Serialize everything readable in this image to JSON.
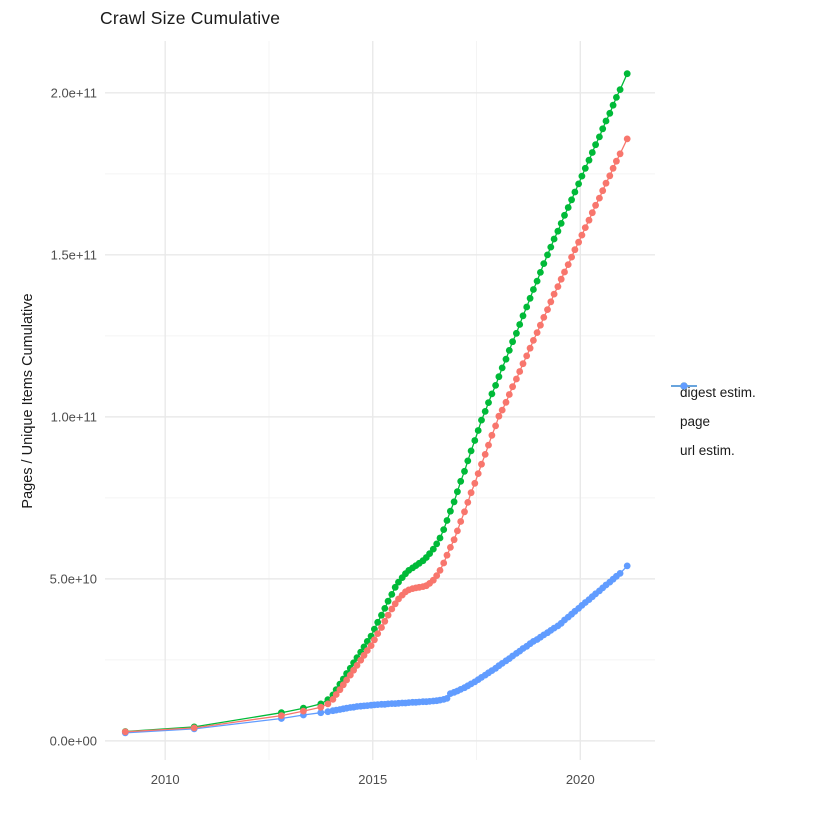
{
  "title": "Crawl Size Cumulative",
  "chart_data": {
    "type": "scatter",
    "title": "Crawl Size Cumulative",
    "xlabel": "",
    "ylabel": "Pages / Unique Items Cumulative",
    "value_unit": "pages / unique items, billions (1e9)",
    "grid": true,
    "background": "#ffffff",
    "grid_major_color": "#e9e9e9",
    "grid_minor_color": "#f4f4f4",
    "tick_text_color": "#4d4d4d",
    "x_axis": {
      "domain": [
        2008.55,
        2021.8
      ],
      "major_ticks": [
        2010,
        2015,
        2020
      ],
      "tick_labels": [
        "2010",
        "2015",
        "2020"
      ],
      "minor_ticks": [
        2012.5,
        2017.5
      ]
    },
    "y_axis": {
      "domain_billions": [
        -5.9,
        216
      ],
      "major_ticks_billions": [
        0,
        50,
        100,
        150,
        200
      ],
      "tick_labels": [
        "0.0e+00",
        "5.0e+10",
        "1.0e+11",
        "1.5e+11",
        "2.0e+11"
      ],
      "minor_ticks_billions": [
        25,
        75,
        125,
        175
      ]
    },
    "legend": {
      "position": "right",
      "title": ""
    },
    "series": [
      {
        "name": "digest estim.",
        "color": "#F8766D",
        "points": [
          [
            2009.04,
            2.8
          ],
          [
            2010.7,
            4.0
          ],
          [
            2012.8,
            7.8
          ],
          [
            2013.33,
            9.2
          ],
          [
            2013.75,
            10.4
          ],
          [
            2013.92,
            11.4
          ],
          [
            2014.04,
            12.8
          ],
          [
            2014.12,
            14.3
          ],
          [
            2014.21,
            15.8
          ],
          [
            2014.29,
            17.3
          ],
          [
            2014.37,
            18.8
          ],
          [
            2014.46,
            20.3
          ],
          [
            2014.54,
            21.8
          ],
          [
            2014.62,
            23.3
          ],
          [
            2014.71,
            24.9
          ],
          [
            2014.79,
            26.4
          ],
          [
            2014.87,
            27.9
          ],
          [
            2014.96,
            29.4
          ],
          [
            2015.04,
            31.2
          ],
          [
            2015.12,
            33.1
          ],
          [
            2015.21,
            35.0
          ],
          [
            2015.29,
            36.9
          ],
          [
            2015.37,
            38.8
          ],
          [
            2015.46,
            40.7
          ],
          [
            2015.54,
            42.3
          ],
          [
            2015.62,
            43.8
          ],
          [
            2015.71,
            45.0
          ],
          [
            2015.79,
            46.0
          ],
          [
            2015.87,
            46.6
          ],
          [
            2015.96,
            47.0
          ],
          [
            2016.04,
            47.2
          ],
          [
            2016.12,
            47.4
          ],
          [
            2016.21,
            47.6
          ],
          [
            2016.29,
            47.9
          ],
          [
            2016.37,
            48.6
          ],
          [
            2016.46,
            49.6
          ],
          [
            2016.54,
            51.0
          ],
          [
            2016.62,
            52.6
          ],
          [
            2016.71,
            54.9
          ],
          [
            2016.79,
            57.3
          ],
          [
            2016.87,
            59.7
          ],
          [
            2016.96,
            62.1
          ],
          [
            2017.04,
            64.8
          ],
          [
            2017.12,
            67.7
          ],
          [
            2017.21,
            70.7
          ],
          [
            2017.29,
            73.6
          ],
          [
            2017.37,
            76.6
          ],
          [
            2017.46,
            79.5
          ],
          [
            2017.54,
            82.5
          ],
          [
            2017.62,
            85.4
          ],
          [
            2017.71,
            88.4
          ],
          [
            2017.79,
            91.3
          ],
          [
            2017.87,
            94.3
          ],
          [
            2017.96,
            97.2
          ],
          [
            2018.04,
            100.2
          ],
          [
            2018.12,
            102.1
          ],
          [
            2018.21,
            104.5
          ],
          [
            2018.29,
            106.9
          ],
          [
            2018.37,
            109.3
          ],
          [
            2018.46,
            111.7
          ],
          [
            2018.54,
            114.0
          ],
          [
            2018.62,
            116.4
          ],
          [
            2018.71,
            118.8
          ],
          [
            2018.79,
            121.2
          ],
          [
            2018.87,
            123.6
          ],
          [
            2018.96,
            126.0
          ],
          [
            2019.04,
            128.3
          ],
          [
            2019.12,
            130.7
          ],
          [
            2019.21,
            133.1
          ],
          [
            2019.29,
            135.5
          ],
          [
            2019.37,
            137.9
          ],
          [
            2019.46,
            140.2
          ],
          [
            2019.54,
            142.5
          ],
          [
            2019.62,
            144.7
          ],
          [
            2019.71,
            147.0
          ],
          [
            2019.79,
            149.3
          ],
          [
            2019.87,
            151.6
          ],
          [
            2019.96,
            153.9
          ],
          [
            2020.04,
            156.1
          ],
          [
            2020.12,
            158.4
          ],
          [
            2020.21,
            160.7
          ],
          [
            2020.29,
            163.0
          ],
          [
            2020.37,
            165.3
          ],
          [
            2020.46,
            167.5
          ],
          [
            2020.54,
            169.8
          ],
          [
            2020.62,
            172.1
          ],
          [
            2020.71,
            174.4
          ],
          [
            2020.79,
            176.7
          ],
          [
            2020.87,
            178.9
          ],
          [
            2020.96,
            181.2
          ],
          [
            2021.13,
            185.8
          ]
        ]
      },
      {
        "name": "page",
        "color": "#00BA38",
        "points": [
          [
            2009.04,
            2.9
          ],
          [
            2010.7,
            4.3
          ],
          [
            2012.8,
            8.7
          ],
          [
            2013.33,
            10.1
          ],
          [
            2013.75,
            11.4
          ],
          [
            2013.92,
            12.7
          ],
          [
            2014.04,
            14.2
          ],
          [
            2014.12,
            15.8
          ],
          [
            2014.21,
            17.5
          ],
          [
            2014.29,
            19.1
          ],
          [
            2014.37,
            20.8
          ],
          [
            2014.46,
            22.4
          ],
          [
            2014.54,
            24.1
          ],
          [
            2014.62,
            25.7
          ],
          [
            2014.71,
            27.4
          ],
          [
            2014.79,
            29.0
          ],
          [
            2014.87,
            30.7
          ],
          [
            2014.96,
            32.3
          ],
          [
            2015.04,
            34.5
          ],
          [
            2015.12,
            36.6
          ],
          [
            2015.21,
            38.8
          ],
          [
            2015.29,
            40.9
          ],
          [
            2015.37,
            43.1
          ],
          [
            2015.46,
            45.2
          ],
          [
            2015.54,
            47.4
          ],
          [
            2015.62,
            49.0
          ],
          [
            2015.71,
            50.4
          ],
          [
            2015.79,
            51.6
          ],
          [
            2015.87,
            52.6
          ],
          [
            2015.96,
            53.4
          ],
          [
            2016.04,
            54.1
          ],
          [
            2016.12,
            54.8
          ],
          [
            2016.21,
            55.6
          ],
          [
            2016.29,
            56.6
          ],
          [
            2016.37,
            57.8
          ],
          [
            2016.46,
            59.2
          ],
          [
            2016.54,
            60.8
          ],
          [
            2016.62,
            62.6
          ],
          [
            2016.71,
            65.2
          ],
          [
            2016.79,
            68.0
          ],
          [
            2016.87,
            70.9
          ],
          [
            2016.96,
            73.8
          ],
          [
            2017.04,
            76.9
          ],
          [
            2017.12,
            80.1
          ],
          [
            2017.21,
            83.2
          ],
          [
            2017.29,
            86.4
          ],
          [
            2017.37,
            89.5
          ],
          [
            2017.46,
            92.7
          ],
          [
            2017.54,
            95.8
          ],
          [
            2017.62,
            99.0
          ],
          [
            2017.71,
            101.7
          ],
          [
            2017.79,
            104.4
          ],
          [
            2017.87,
            107.1
          ],
          [
            2017.96,
            109.7
          ],
          [
            2018.04,
            112.4
          ],
          [
            2018.12,
            115.1
          ],
          [
            2018.21,
            117.8
          ],
          [
            2018.29,
            120.5
          ],
          [
            2018.37,
            123.2
          ],
          [
            2018.46,
            125.8
          ],
          [
            2018.54,
            128.5
          ],
          [
            2018.62,
            131.2
          ],
          [
            2018.71,
            133.9
          ],
          [
            2018.79,
            136.6
          ],
          [
            2018.87,
            139.3
          ],
          [
            2018.96,
            141.9
          ],
          [
            2019.04,
            144.6
          ],
          [
            2019.12,
            147.3
          ],
          [
            2019.21,
            150.0
          ],
          [
            2019.29,
            152.4
          ],
          [
            2019.37,
            154.9
          ],
          [
            2019.46,
            157.3
          ],
          [
            2019.54,
            159.7
          ],
          [
            2019.62,
            162.2
          ],
          [
            2019.71,
            164.6
          ],
          [
            2019.79,
            167.0
          ],
          [
            2019.87,
            169.4
          ],
          [
            2019.96,
            171.9
          ],
          [
            2020.04,
            174.3
          ],
          [
            2020.12,
            176.7
          ],
          [
            2020.21,
            179.2
          ],
          [
            2020.29,
            181.6
          ],
          [
            2020.37,
            184.0
          ],
          [
            2020.46,
            186.4
          ],
          [
            2020.54,
            188.9
          ],
          [
            2020.62,
            191.3
          ],
          [
            2020.71,
            193.7
          ],
          [
            2020.79,
            196.2
          ],
          [
            2020.87,
            198.6
          ],
          [
            2020.96,
            201.0
          ],
          [
            2021.13,
            205.9
          ]
        ]
      },
      {
        "name": "url estim.",
        "color": "#619CFF",
        "points": [
          [
            2009.04,
            2.5
          ],
          [
            2010.7,
            3.7
          ],
          [
            2012.8,
            6.9
          ],
          [
            2013.33,
            8.0
          ],
          [
            2013.75,
            8.7
          ],
          [
            2013.92,
            9.0
          ],
          [
            2014.04,
            9.3
          ],
          [
            2014.12,
            9.5
          ],
          [
            2014.21,
            9.7
          ],
          [
            2014.29,
            9.9
          ],
          [
            2014.37,
            10.1
          ],
          [
            2014.46,
            10.3
          ],
          [
            2014.54,
            10.4
          ],
          [
            2014.62,
            10.6
          ],
          [
            2014.71,
            10.7
          ],
          [
            2014.79,
            10.8
          ],
          [
            2014.87,
            10.9
          ],
          [
            2014.96,
            11.0
          ],
          [
            2015.04,
            11.1
          ],
          [
            2015.12,
            11.2
          ],
          [
            2015.21,
            11.3
          ],
          [
            2015.29,
            11.3
          ],
          [
            2015.37,
            11.4
          ],
          [
            2015.46,
            11.5
          ],
          [
            2015.54,
            11.5
          ],
          [
            2015.62,
            11.6
          ],
          [
            2015.71,
            11.7
          ],
          [
            2015.79,
            11.7
          ],
          [
            2015.87,
            11.8
          ],
          [
            2015.96,
            11.9
          ],
          [
            2016.04,
            11.9
          ],
          [
            2016.12,
            12.0
          ],
          [
            2016.21,
            12.1
          ],
          [
            2016.29,
            12.1
          ],
          [
            2016.37,
            12.2
          ],
          [
            2016.46,
            12.3
          ],
          [
            2016.54,
            12.4
          ],
          [
            2016.62,
            12.6
          ],
          [
            2016.71,
            12.8
          ],
          [
            2016.79,
            13.1
          ],
          [
            2016.87,
            14.6
          ],
          [
            2016.96,
            15.0
          ],
          [
            2017.04,
            15.4
          ],
          [
            2017.12,
            15.9
          ],
          [
            2017.21,
            16.4
          ],
          [
            2017.29,
            17.0
          ],
          [
            2017.37,
            17.6
          ],
          [
            2017.46,
            18.2
          ],
          [
            2017.54,
            18.9
          ],
          [
            2017.62,
            19.6
          ],
          [
            2017.71,
            20.3
          ],
          [
            2017.79,
            21.0
          ],
          [
            2017.87,
            21.7
          ],
          [
            2017.96,
            22.4
          ],
          [
            2018.04,
            23.2
          ],
          [
            2018.12,
            23.9
          ],
          [
            2018.21,
            24.7
          ],
          [
            2018.29,
            25.4
          ],
          [
            2018.37,
            26.2
          ],
          [
            2018.46,
            27.0
          ],
          [
            2018.54,
            27.7
          ],
          [
            2018.62,
            28.5
          ],
          [
            2018.71,
            29.2
          ],
          [
            2018.79,
            30.0
          ],
          [
            2018.87,
            30.7
          ],
          [
            2018.96,
            31.3
          ],
          [
            2019.04,
            32.0
          ],
          [
            2019.12,
            32.7
          ],
          [
            2019.21,
            33.4
          ],
          [
            2019.29,
            34.1
          ],
          [
            2019.37,
            34.8
          ],
          [
            2019.46,
            35.5
          ],
          [
            2019.54,
            36.3
          ],
          [
            2019.62,
            37.3
          ],
          [
            2019.71,
            38.2
          ],
          [
            2019.79,
            39.1
          ],
          [
            2019.87,
            40.0
          ],
          [
            2019.96,
            40.9
          ],
          [
            2020.04,
            41.8
          ],
          [
            2020.12,
            42.7
          ],
          [
            2020.21,
            43.6
          ],
          [
            2020.29,
            44.5
          ],
          [
            2020.37,
            45.4
          ],
          [
            2020.46,
            46.3
          ],
          [
            2020.54,
            47.2
          ],
          [
            2020.62,
            48.1
          ],
          [
            2020.71,
            49.0
          ],
          [
            2020.79,
            49.9
          ],
          [
            2020.87,
            50.8
          ],
          [
            2020.96,
            51.7
          ],
          [
            2021.13,
            54.0
          ]
        ]
      }
    ]
  }
}
